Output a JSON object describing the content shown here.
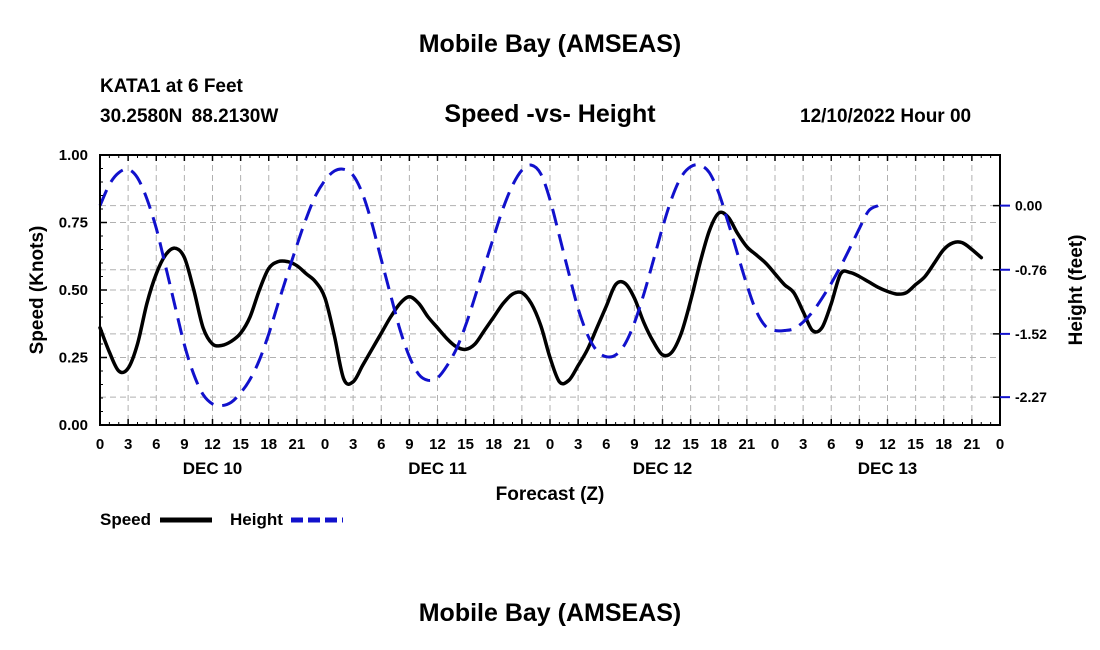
{
  "header": {
    "title": "Mobile Bay (AMSEAS)",
    "station": "KATA1 at 6 Feet",
    "coords": "30.2580N  88.2130W",
    "run_time": "12/10/2022 Hour 00",
    "footer_title": "Mobile Bay (AMSEAS)"
  },
  "chart_data": {
    "type": "line",
    "title": "Speed -vs- Height",
    "xlabel": "Forecast (Z)",
    "ylabel": "Speed (Knots)",
    "y2label": "Height (feet)",
    "xlim": [
      0,
      96
    ],
    "ylim": [
      0,
      1
    ],
    "y2lim": [
      -2.6,
      0.6
    ],
    "x_ticks": [
      0,
      3,
      6,
      9,
      12,
      15,
      18,
      21,
      24,
      27,
      30,
      33,
      36,
      39,
      42,
      45,
      48,
      51,
      54,
      57,
      60,
      63,
      66,
      69,
      72,
      75,
      78,
      81,
      84,
      87,
      90,
      93,
      96
    ],
    "x_tick_labels": [
      "0",
      "3",
      "6",
      "9",
      "12",
      "15",
      "18",
      "21",
      "0",
      "3",
      "6",
      "9",
      "12",
      "15",
      "18",
      "21",
      "0",
      "3",
      "6",
      "9",
      "12",
      "15",
      "18",
      "21",
      "0",
      "3",
      "6",
      "9",
      "12",
      "15",
      "18",
      "21",
      "0"
    ],
    "day_labels": [
      {
        "x": 12,
        "label": "DEC 10"
      },
      {
        "x": 36,
        "label": "DEC 11"
      },
      {
        "x": 60,
        "label": "DEC 12"
      },
      {
        "x": 84,
        "label": "DEC 13"
      }
    ],
    "y_ticks": [
      0,
      0.25,
      0.5,
      0.75,
      1.0
    ],
    "y_tick_labels": [
      "0.00",
      "0.25",
      "0.50",
      "0.75",
      "1.00"
    ],
    "y2_ticks": [
      0,
      -0.76,
      -1.52,
      -2.27
    ],
    "y2_tick_labels": [
      "0.00",
      "-0.76",
      "-1.52",
      "-2.27"
    ],
    "grid": true,
    "legend_position": "bottom-left",
    "series": [
      {
        "name": "Speed",
        "axis": "left",
        "color": "#000000",
        "dash": "solid",
        "points": [
          [
            0,
            0.36
          ],
          [
            1,
            0.27
          ],
          [
            2,
            0.2
          ],
          [
            3,
            0.21
          ],
          [
            4,
            0.3
          ],
          [
            5,
            0.45
          ],
          [
            6,
            0.56
          ],
          [
            7,
            0.63
          ],
          [
            8,
            0.655
          ],
          [
            9,
            0.62
          ],
          [
            10,
            0.5
          ],
          [
            11,
            0.36
          ],
          [
            12,
            0.3
          ],
          [
            13,
            0.295
          ],
          [
            14,
            0.31
          ],
          [
            15,
            0.34
          ],
          [
            16,
            0.4
          ],
          [
            17,
            0.5
          ],
          [
            18,
            0.58
          ],
          [
            19,
            0.605
          ],
          [
            20,
            0.605
          ],
          [
            21,
            0.59
          ],
          [
            22,
            0.56
          ],
          [
            23,
            0.53
          ],
          [
            24,
            0.47
          ],
          [
            25,
            0.33
          ],
          [
            26,
            0.17
          ],
          [
            27,
            0.16
          ],
          [
            28,
            0.22
          ],
          [
            29,
            0.28
          ],
          [
            30,
            0.34
          ],
          [
            31,
            0.4
          ],
          [
            32,
            0.45
          ],
          [
            33,
            0.475
          ],
          [
            34,
            0.45
          ],
          [
            35,
            0.4
          ],
          [
            36,
            0.36
          ],
          [
            37,
            0.32
          ],
          [
            38,
            0.29
          ],
          [
            39,
            0.28
          ],
          [
            40,
            0.3
          ],
          [
            41,
            0.35
          ],
          [
            42,
            0.4
          ],
          [
            43,
            0.45
          ],
          [
            44,
            0.485
          ],
          [
            45,
            0.49
          ],
          [
            46,
            0.45
          ],
          [
            47,
            0.37
          ],
          [
            48,
            0.25
          ],
          [
            49,
            0.16
          ],
          [
            50,
            0.165
          ],
          [
            51,
            0.22
          ],
          [
            52,
            0.28
          ],
          [
            53,
            0.36
          ],
          [
            54,
            0.44
          ],
          [
            55,
            0.52
          ],
          [
            56,
            0.525
          ],
          [
            57,
            0.47
          ],
          [
            58,
            0.38
          ],
          [
            59,
            0.31
          ],
          [
            60,
            0.26
          ],
          [
            61,
            0.27
          ],
          [
            62,
            0.34
          ],
          [
            63,
            0.46
          ],
          [
            64,
            0.6
          ],
          [
            65,
            0.72
          ],
          [
            66,
            0.785
          ],
          [
            67,
            0.77
          ],
          [
            68,
            0.71
          ],
          [
            69,
            0.66
          ],
          [
            70,
            0.63
          ],
          [
            71,
            0.6
          ],
          [
            72,
            0.56
          ],
          [
            73,
            0.52
          ],
          [
            74,
            0.49
          ],
          [
            75,
            0.42
          ],
          [
            76,
            0.35
          ],
          [
            77,
            0.36
          ],
          [
            78,
            0.45
          ],
          [
            79,
            0.56
          ],
          [
            80,
            0.565
          ],
          [
            81,
            0.55
          ],
          [
            82,
            0.53
          ],
          [
            83,
            0.51
          ],
          [
            84,
            0.495
          ],
          [
            85,
            0.485
          ],
          [
            86,
            0.49
          ],
          [
            87,
            0.52
          ],
          [
            88,
            0.55
          ],
          [
            89,
            0.6
          ],
          [
            90,
            0.65
          ],
          [
            91,
            0.675
          ],
          [
            92,
            0.675
          ],
          [
            93,
            0.65
          ],
          [
            94,
            0.62
          ]
        ]
      },
      {
        "name": "Height",
        "axis": "right",
        "color": "#1111cc",
        "dash": "dashed",
        "points": [
          [
            0,
            0.0
          ],
          [
            1,
            0.25
          ],
          [
            2,
            0.39
          ],
          [
            3,
            0.43
          ],
          [
            4,
            0.33
          ],
          [
            5,
            0.08
          ],
          [
            6,
            -0.27
          ],
          [
            7,
            -0.72
          ],
          [
            8,
            -1.19
          ],
          [
            9,
            -1.65
          ],
          [
            10,
            -2.0
          ],
          [
            11,
            -2.24
          ],
          [
            12,
            -2.35
          ],
          [
            13,
            -2.37
          ],
          [
            14,
            -2.33
          ],
          [
            15,
            -2.22
          ],
          [
            16,
            -2.06
          ],
          [
            17,
            -1.83
          ],
          [
            18,
            -1.52
          ],
          [
            19,
            -1.16
          ],
          [
            20,
            -0.81
          ],
          [
            21,
            -0.47
          ],
          [
            22,
            -0.15
          ],
          [
            23,
            0.12
          ],
          [
            24,
            0.3
          ],
          [
            25,
            0.41
          ],
          [
            26,
            0.43
          ],
          [
            27,
            0.36
          ],
          [
            28,
            0.14
          ],
          [
            29,
            -0.21
          ],
          [
            30,
            -0.64
          ],
          [
            31,
            -1.06
          ],
          [
            32,
            -1.47
          ],
          [
            33,
            -1.79
          ],
          [
            34,
            -2.0
          ],
          [
            35,
            -2.07
          ],
          [
            36,
            -2.04
          ],
          [
            37,
            -1.9
          ],
          [
            38,
            -1.7
          ],
          [
            39,
            -1.42
          ],
          [
            40,
            -1.08
          ],
          [
            41,
            -0.72
          ],
          [
            42,
            -0.37
          ],
          [
            43,
            -0.03
          ],
          [
            44,
            0.24
          ],
          [
            45,
            0.42
          ],
          [
            46,
            0.48
          ],
          [
            47,
            0.38
          ],
          [
            48,
            0.07
          ],
          [
            49,
            -0.36
          ],
          [
            50,
            -0.8
          ],
          [
            51,
            -1.22
          ],
          [
            52,
            -1.53
          ],
          [
            53,
            -1.72
          ],
          [
            54,
            -1.79
          ],
          [
            55,
            -1.77
          ],
          [
            56,
            -1.64
          ],
          [
            57,
            -1.39
          ],
          [
            58,
            -1.05
          ],
          [
            59,
            -0.66
          ],
          [
            60,
            -0.26
          ],
          [
            61,
            0.09
          ],
          [
            62,
            0.34
          ],
          [
            63,
            0.46
          ],
          [
            64,
            0.48
          ],
          [
            65,
            0.39
          ],
          [
            66,
            0.15
          ],
          [
            67,
            -0.2
          ],
          [
            68,
            -0.57
          ],
          [
            69,
            -0.94
          ],
          [
            70,
            -1.25
          ],
          [
            71,
            -1.43
          ],
          [
            72,
            -1.48
          ],
          [
            73,
            -1.48
          ],
          [
            74,
            -1.46
          ],
          [
            75,
            -1.38
          ],
          [
            76,
            -1.26
          ],
          [
            77,
            -1.1
          ],
          [
            78,
            -0.92
          ],
          [
            79,
            -0.72
          ],
          [
            80,
            -0.5
          ],
          [
            81,
            -0.27
          ],
          [
            82,
            -0.06
          ],
          [
            83,
            0.0
          ]
        ]
      }
    ]
  }
}
